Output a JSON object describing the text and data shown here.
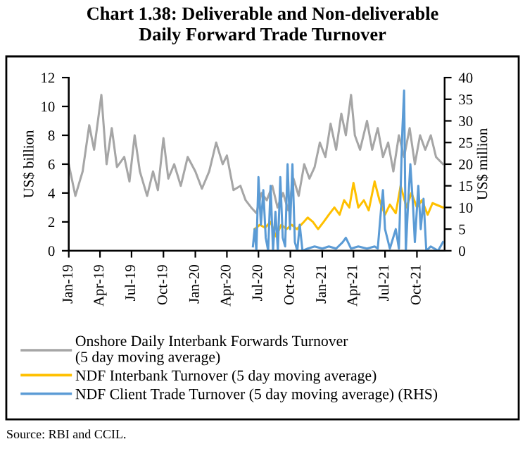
{
  "chart_data": {
    "type": "line",
    "title": "Chart 1.38: Deliverable and Non-deliverable\nDaily Forward Trade Turnover",
    "ylabel": "US$ billion",
    "y2label": "US$ million",
    "annotations": [
      "Source: RBI and CCIL."
    ],
    "xlim": [
      "2019-01-01",
      "2021-12-20"
    ],
    "xticks": [
      {
        "value": "2019-01-01",
        "label": "Jan-19"
      },
      {
        "value": "2019-04-01",
        "label": "Apr-19"
      },
      {
        "value": "2019-07-01",
        "label": "Jul-19"
      },
      {
        "value": "2019-10-01",
        "label": "Oct-19"
      },
      {
        "value": "2020-01-01",
        "label": "Jan-20"
      },
      {
        "value": "2020-04-01",
        "label": "Apr-20"
      },
      {
        "value": "2020-07-01",
        "label": "Jul-20"
      },
      {
        "value": "2020-10-01",
        "label": "Oct-20"
      },
      {
        "value": "2021-01-01",
        "label": "Jan-21"
      },
      {
        "value": "2021-04-01",
        "label": "Apr-21"
      },
      {
        "value": "2021-07-01",
        "label": "Jul-21"
      },
      {
        "value": "2021-10-01",
        "label": "Oct-21"
      }
    ],
    "ylim": [
      0,
      12
    ],
    "yticks": [
      0,
      2,
      4,
      6,
      8,
      10,
      12
    ],
    "y2lim": [
      0,
      40
    ],
    "y2ticks": [
      0,
      5,
      10,
      15,
      20,
      25,
      30,
      35,
      40
    ],
    "legend": "bottom",
    "grid": false,
    "series": [
      {
        "name": "Onshore Daily Interbank Forwards Turnover\n(5 day moving average)",
        "color": "#a6a6a6",
        "x": [
          "2019-01-01",
          "2019-01-20",
          "2019-02-10",
          "2019-03-01",
          "2019-03-15",
          "2019-04-05",
          "2019-04-20",
          "2019-05-05",
          "2019-05-20",
          "2019-06-10",
          "2019-06-25",
          "2019-07-10",
          "2019-07-25",
          "2019-08-15",
          "2019-09-01",
          "2019-09-15",
          "2019-10-01",
          "2019-10-15",
          "2019-11-01",
          "2019-11-20",
          "2019-12-10",
          "2020-01-01",
          "2020-01-20",
          "2020-02-10",
          "2020-03-01",
          "2020-03-20",
          "2020-04-01",
          "2020-04-20",
          "2020-05-10",
          "2020-05-25",
          "2020-06-10",
          "2020-06-25",
          "2020-07-10",
          "2020-07-25",
          "2020-08-10",
          "2020-08-25",
          "2020-09-10",
          "2020-09-25",
          "2020-10-10",
          "2020-10-25",
          "2020-11-10",
          "2020-11-25",
          "2020-12-10",
          "2020-12-25",
          "2021-01-10",
          "2021-01-25",
          "2021-02-10",
          "2021-02-25",
          "2021-03-10",
          "2021-03-25",
          "2021-04-05",
          "2021-04-20",
          "2021-05-10",
          "2021-05-25",
          "2021-06-10",
          "2021-06-25",
          "2021-07-10",
          "2021-07-25",
          "2021-08-10",
          "2021-08-25",
          "2021-09-10",
          "2021-09-25",
          "2021-10-10",
          "2021-10-25",
          "2021-11-10",
          "2021-11-25",
          "2021-12-15"
        ],
        "values": [
          6.0,
          3.8,
          5.5,
          8.7,
          7.0,
          10.8,
          6.0,
          8.5,
          5.8,
          6.5,
          4.8,
          8.0,
          5.5,
          3.8,
          5.5,
          4.2,
          7.8,
          5.0,
          6.0,
          4.5,
          6.5,
          5.5,
          4.3,
          5.5,
          7.5,
          6.0,
          6.6,
          4.2,
          4.5,
          3.5,
          3.0,
          2.6,
          4.0,
          3.5,
          4.5,
          3.0,
          4.0,
          2.8,
          5.0,
          3.8,
          6.0,
          5.0,
          5.8,
          7.5,
          6.5,
          8.8,
          7.0,
          9.5,
          8.0,
          10.8,
          8.0,
          7.0,
          9.0,
          7.0,
          8.5,
          6.5,
          7.5,
          5.5,
          8.0,
          6.5,
          8.5,
          6.0,
          8.0,
          7.0,
          8.0,
          6.5,
          6.0
        ]
      },
      {
        "name": "NDF Interbank Turnover (5 day moving average)",
        "color": "#ffc000",
        "x": [
          "2020-06-20",
          "2020-07-05",
          "2020-07-20",
          "2020-08-05",
          "2020-08-20",
          "2020-09-05",
          "2020-09-20",
          "2020-10-05",
          "2020-10-20",
          "2020-11-05",
          "2020-11-20",
          "2020-12-05",
          "2020-12-20",
          "2021-01-05",
          "2021-01-20",
          "2021-02-05",
          "2021-02-20",
          "2021-03-05",
          "2021-03-20",
          "2021-04-01",
          "2021-04-15",
          "2021-05-01",
          "2021-05-15",
          "2021-06-01",
          "2021-06-15",
          "2021-07-01",
          "2021-07-15",
          "2021-08-01",
          "2021-08-15",
          "2021-09-01",
          "2021-09-15",
          "2021-10-01",
          "2021-10-15",
          "2021-11-01",
          "2021-11-15",
          "2021-12-15"
        ],
        "values": [
          1.5,
          1.8,
          1.6,
          2.0,
          1.0,
          1.8,
          1.5,
          1.8,
          1.5,
          1.9,
          2.3,
          2.0,
          1.5,
          2.0,
          2.5,
          3.0,
          2.5,
          3.5,
          3.0,
          4.7,
          3.0,
          3.5,
          2.8,
          4.8,
          3.5,
          2.5,
          3.2,
          2.6,
          4.5,
          3.0,
          4.0,
          3.0,
          3.5,
          2.5,
          3.3,
          3.0
        ]
      },
      {
        "name": "NDF Client Trade Turnover (5 day moving average) (RHS)",
        "color": "#5b9bd5",
        "axis": "y2",
        "x": [
          "2020-06-15",
          "2020-06-20",
          "2020-06-25",
          "2020-07-01",
          "2020-07-08",
          "2020-07-15",
          "2020-07-22",
          "2020-07-29",
          "2020-08-05",
          "2020-08-12",
          "2020-08-19",
          "2020-08-26",
          "2020-09-02",
          "2020-09-09",
          "2020-09-16",
          "2020-09-23",
          "2020-09-30",
          "2020-10-07",
          "2020-10-14",
          "2020-10-21",
          "2020-10-28",
          "2020-11-05",
          "2020-11-20",
          "2020-12-10",
          "2021-01-01",
          "2021-01-20",
          "2021-02-10",
          "2021-03-01",
          "2021-03-10",
          "2021-03-25",
          "2021-04-15",
          "2021-05-10",
          "2021-06-01",
          "2021-06-10",
          "2021-06-20",
          "2021-06-25",
          "2021-07-01",
          "2021-07-15",
          "2021-08-01",
          "2021-08-10",
          "2021-08-20",
          "2021-08-25",
          "2021-08-30",
          "2021-09-05",
          "2021-09-12",
          "2021-09-20",
          "2021-09-25",
          "2021-10-05",
          "2021-10-12",
          "2021-10-20",
          "2021-10-28",
          "2021-11-10",
          "2021-12-01",
          "2021-12-15"
        ],
        "values": [
          1,
          5,
          0,
          17,
          6,
          14,
          3,
          0,
          15,
          0,
          9,
          0,
          17,
          3,
          1,
          20,
          5,
          20,
          2,
          0,
          6,
          0,
          0.5,
          1,
          0.5,
          1,
          0.5,
          2,
          3,
          0.5,
          1,
          0.5,
          1,
          0.5,
          10,
          14,
          5,
          0.5,
          5,
          0.5,
          28,
          37,
          0,
          10,
          20,
          10,
          2,
          15,
          5,
          12,
          0,
          1,
          0,
          2
        ]
      }
    ]
  }
}
